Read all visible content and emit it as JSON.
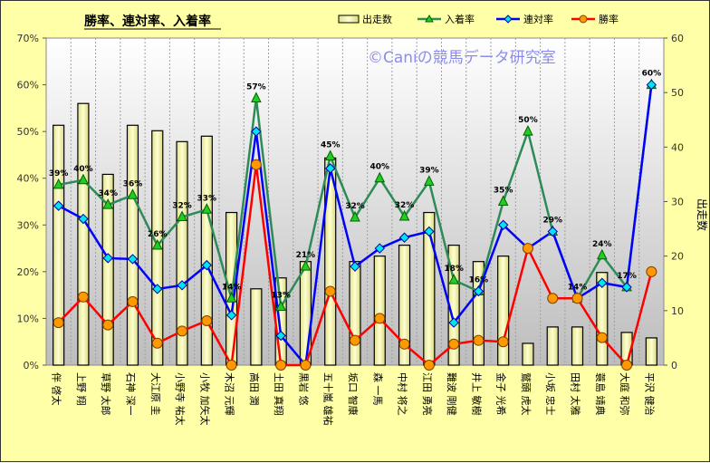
{
  "chart_data": {
    "type": "bar+line",
    "title": "勝率、連対率、入着率",
    "watermark": "©Caniの競馬データ研究室",
    "categories": [
      "伴 啓太",
      "上野 翔",
      "草野 太郎",
      "石神 深一",
      "大江原 圭",
      "小野寺 祐太",
      "小牧 加矢太",
      "木沼 元輝",
      "高田 潤",
      "土田 真翔",
      "黒岩 悠",
      "五十嵐 雄祐",
      "坂口 智康",
      "森 一馬",
      "中村 将之",
      "江田 勇亮",
      "難波 剛健",
      "井上 敏樹",
      "金子 光希",
      "鷲頭 虎太",
      "小坂 忠士",
      "田村 太雅",
      "蓑島 靖典",
      "大庭 和弥",
      "平沢 健治"
    ],
    "left_axis": {
      "min": 0,
      "max": 70,
      "step": 10,
      "suffix": "%"
    },
    "right_axis": {
      "min": 0,
      "max": 60,
      "step": 10,
      "label": "出走数"
    },
    "series": [
      {
        "name": "出走数",
        "type": "bar",
        "axis": "right",
        "color": "#f0f0a0",
        "values": [
          44,
          48,
          35,
          44,
          43,
          41,
          42,
          28,
          14,
          16,
          19,
          38,
          19,
          20,
          22,
          28,
          22,
          19,
          20,
          4,
          7,
          7,
          17,
          6,
          5
        ]
      },
      {
        "name": "入着率",
        "type": "line",
        "axis": "left",
        "color": "#2e8b57",
        "marker": "triangle",
        "marker_color": "#22cc22",
        "values": [
          38.6,
          39.6,
          34.3,
          36.4,
          25.6,
          31.7,
          33.3,
          14.3,
          57.1,
          12.5,
          21.1,
          44.7,
          31.6,
          40.0,
          31.8,
          39.3,
          18.2,
          15.8,
          35.0,
          50.0,
          28.6,
          14.3,
          23.5,
          16.7,
          60.0
        ],
        "labels": [
          "39%",
          "40%",
          "34%",
          "36%",
          "26%",
          "32%",
          "33%",
          "14%",
          "57%",
          "13%",
          "21%",
          "45%",
          "32%",
          "40%",
          "32%",
          "39%",
          "18%",
          "16%",
          "35%",
          "50%",
          "29%",
          "14%",
          "24%",
          "17%",
          "60%"
        ]
      },
      {
        "name": "連対率",
        "type": "line",
        "axis": "left",
        "color": "#0000ff",
        "marker": "diamond",
        "marker_color": "#00e5ee",
        "values": [
          34.1,
          31.3,
          22.9,
          22.7,
          16.3,
          17.1,
          21.4,
          10.7,
          50.0,
          6.3,
          0,
          42.1,
          21.1,
          25.0,
          27.3,
          28.6,
          9.1,
          15.8,
          30.0,
          25.0,
          28.6,
          14.3,
          17.6,
          16.7,
          60.0
        ]
      },
      {
        "name": "勝率",
        "type": "line",
        "axis": "left",
        "color": "#ff0000",
        "marker": "circle",
        "marker_color": "#ff9900",
        "values": [
          9.1,
          14.6,
          8.6,
          13.6,
          4.7,
          7.3,
          9.5,
          0,
          42.9,
          0,
          0,
          15.8,
          5.3,
          10.0,
          4.5,
          0,
          4.5,
          5.3,
          5.0,
          25.0,
          14.3,
          14.3,
          5.9,
          0,
          20.0
        ]
      }
    ],
    "legend": [
      "出走数",
      "入着率",
      "連対率",
      "勝率"
    ],
    "legend_position": "top-right",
    "grid": "vertical dashed"
  }
}
